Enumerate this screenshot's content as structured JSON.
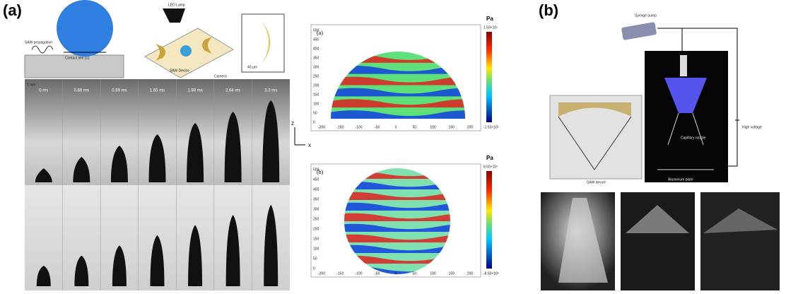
{
  "figure": {
    "panel_a": {
      "label": "(a)",
      "schematic": {
        "saw": "SAW propagation",
        "contact": "Contact line (cₗ)",
        "lamp": "LED Lamp",
        "device": "SAW Device",
        "camera": "Camera",
        "scale": "40 µm"
      },
      "frames": {
        "scale": "1 mm",
        "times": [
          "0 ms",
          "0.66 ms",
          "0.99 ms",
          "1.65 ms",
          "1.98 ms",
          "2.64 ms",
          "3.3 ms"
        ]
      },
      "axes": {
        "z": "z",
        "x": "x"
      },
      "plots": [
        {
          "label": "(a)",
          "unit": "Pa",
          "cb_max": "1.53×10⁵",
          "cb_min": "-1.53×10⁵",
          "xticks": [
            "-200",
            "-150",
            "-100",
            "-50",
            "0",
            "50",
            "100",
            "150",
            "200"
          ],
          "yticks": [
            "500",
            "450",
            "400",
            "350",
            "300",
            "250",
            "200",
            "150",
            "100",
            "50",
            "0"
          ]
        },
        {
          "label": "(b)",
          "unit": "Pa",
          "cb_max": "8.50×10³",
          "cb_min": "-8.50×10³",
          "xticks": [
            "-200",
            "-150",
            "-100",
            "-50",
            "0",
            "50",
            "100",
            "150",
            "200"
          ],
          "yticks": [
            "500",
            "450",
            "400",
            "350",
            "300",
            "250",
            "200",
            "150",
            "100",
            "50",
            "0"
          ]
        }
      ]
    },
    "panel_b": {
      "label": "(b)",
      "labels": {
        "pump": "Syringe pump",
        "voltage": "High voltage",
        "nozzle": "Capillary nozzle",
        "device": "SAW device",
        "plate": "Aluminium plate"
      }
    }
  }
}
